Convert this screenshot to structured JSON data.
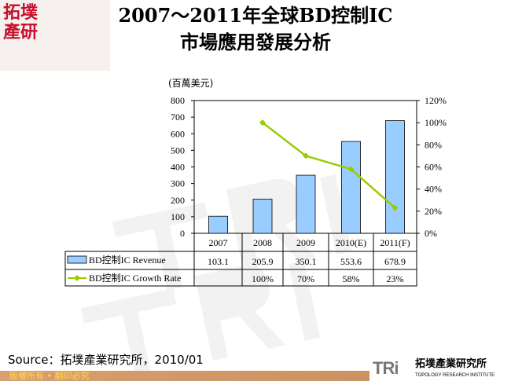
{
  "logo": "拓墣產研",
  "title_line1": "2007～2011年全球BD控制IC",
  "title_line2": "市場應用發展分析",
  "source": "Source：拓墣產業研究所，2010/01",
  "footer": "版權所有 • 翻印必究",
  "brand": {
    "mark": "TRi",
    "name": "拓墣產業研究所",
    "sub": "TOPOLOGY RESEARCH INSTITUTE"
  },
  "chart_data": {
    "type": "bar+line",
    "ylabel": "(百萬美元)",
    "categories": [
      "2007",
      "2008",
      "2009",
      "2010(E)",
      "2011(F)"
    ],
    "ylim": [
      0,
      800
    ],
    "yticks": [
      "0",
      "100",
      "200",
      "300",
      "400",
      "500",
      "600",
      "700",
      "800"
    ],
    "y2lim": [
      0,
      120
    ],
    "y2ticks": [
      "0%",
      "20%",
      "40%",
      "60%",
      "80%",
      "100%",
      "120%"
    ],
    "series": [
      {
        "name": "BD控制IC Revenue",
        "kind": "bar",
        "color": "#99ccff",
        "values": [
          103.1,
          205.9,
          350.1,
          553.6,
          678.9
        ],
        "labels": [
          "103.1",
          "205.9",
          "350.1",
          "553.6",
          "678.9"
        ]
      },
      {
        "name": "BD控制IC Growth Rate",
        "kind": "line",
        "axis": "right",
        "color": "#99cc00",
        "values": [
          null,
          100,
          70,
          58,
          23
        ],
        "labels": [
          "",
          "100%",
          "70%",
          "58%",
          "23%"
        ]
      }
    ]
  }
}
